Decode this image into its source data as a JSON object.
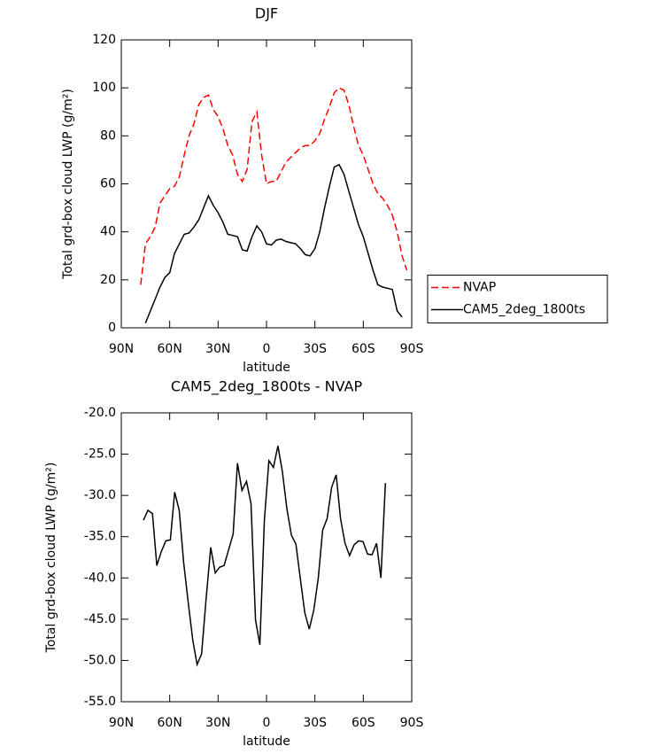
{
  "chart_data": [
    {
      "type": "line",
      "title": "DJF",
      "xlabel": "latitude",
      "ylabel": "Total grd-box cloud LWP (g/m²)",
      "xlim": [
        90,
        -90
      ],
      "xticks": [
        {
          "value": 90,
          "label": "90N"
        },
        {
          "value": 60,
          "label": "60N"
        },
        {
          "value": 30,
          "label": "30N"
        },
        0,
        {
          "value": -30,
          "label": "30S"
        },
        {
          "value": -60,
          "label": "60S"
        },
        {
          "value": -90,
          "label": "90S"
        }
      ],
      "ylim": [
        0,
        120
      ],
      "yticks": [
        0,
        20,
        40,
        60,
        80,
        100,
        120
      ],
      "legend": "right",
      "x": [
        78,
        75,
        72,
        69,
        66,
        63,
        60,
        57,
        54,
        51,
        48,
        45,
        42,
        39,
        36,
        33,
        30,
        27,
        24,
        21,
        18,
        15,
        12,
        9,
        6,
        3,
        0,
        -3,
        -6,
        -9,
        -12,
        -15,
        -18,
        -21,
        -24,
        -27,
        -30,
        -33,
        -36,
        -39,
        -42,
        -45,
        -48,
        -51,
        -54,
        -57,
        -60,
        -63,
        -66,
        -69,
        -72,
        -75,
        -78,
        -81,
        -84,
        -87
      ],
      "series": [
        {
          "name": "NVAP",
          "color": "#ff0000",
          "dashed": true,
          "values": [
            18,
            35,
            38,
            42,
            52,
            55,
            58,
            59,
            63,
            72,
            80,
            85,
            93,
            96,
            97,
            91,
            88,
            83,
            76,
            72,
            64,
            61,
            66,
            86,
            90,
            72,
            60,
            61,
            61,
            65,
            69,
            71,
            73,
            75,
            76,
            76,
            78,
            81,
            87,
            92,
            98,
            100,
            99,
            93,
            84,
            76,
            72,
            66,
            60,
            56,
            54,
            51,
            47,
            40,
            30,
            24
          ]
        },
        {
          "name": "CAM5_2deg_1800ts",
          "color": "#000000",
          "dashed": false,
          "values": [
            null,
            2,
            7,
            12,
            17,
            21,
            23,
            31,
            35,
            39,
            39.5,
            42,
            45,
            50,
            55,
            51,
            48,
            44,
            39,
            38.5,
            38,
            32.5,
            32,
            38,
            42.5,
            40,
            35,
            34.5,
            36.5,
            37,
            36,
            35.5,
            35,
            33,
            30.5,
            30,
            33,
            40,
            50,
            59,
            67,
            68,
            64,
            57,
            50,
            43,
            38,
            31,
            24,
            18,
            17,
            16.5,
            16,
            7,
            4.5,
            null
          ]
        }
      ]
    },
    {
      "type": "line",
      "title": "CAM5_2deg_1800ts - NVAP",
      "xlabel": "latitude",
      "ylabel": "Total grd-box cloud LWP (g/m²)",
      "xlim": [
        90,
        -90
      ],
      "xticks": [
        {
          "value": 90,
          "label": "90N"
        },
        {
          "value": 60,
          "label": "60N"
        },
        {
          "value": 30,
          "label": "30N"
        },
        0,
        {
          "value": -30,
          "label": "30S"
        },
        {
          "value": -60,
          "label": "60S"
        },
        {
          "value": -90,
          "label": "90S"
        }
      ],
      "ylim": [
        -55,
        -20
      ],
      "yticks": [
        {
          "value": -55,
          "label": "-55.0"
        },
        {
          "value": -50,
          "label": "-50.0"
        },
        {
          "value": -45,
          "label": "-45.0"
        },
        {
          "value": -40,
          "label": "-40.0"
        },
        {
          "value": -35,
          "label": "-35.0"
        },
        {
          "value": -30,
          "label": "-30.0"
        },
        {
          "value": -25,
          "label": "-25.0"
        },
        {
          "value": -20,
          "label": "-20.0"
        }
      ],
      "x": [
        76.3,
        73.5,
        70.7,
        68.0,
        65.2,
        62.4,
        59.6,
        56.9,
        54.1,
        51.3,
        48.5,
        45.7,
        43.0,
        40.2,
        37.4,
        34.6,
        31.8,
        29.1,
        26.3,
        23.5,
        20.7,
        18.0,
        15.2,
        12.4,
        9.6,
        6.8,
        4.1,
        1.3,
        -1.5,
        -4.3,
        -7.1,
        -9.8,
        -12.6,
        -15.4,
        -18.2,
        -20.9,
        -23.7,
        -26.5,
        -29.3,
        -32.1,
        -34.8,
        -37.6,
        -40.4,
        -43.2,
        -45.9,
        -48.7,
        -51.5,
        -54.3,
        -57.1,
        -59.8,
        -62.6,
        -65.4,
        -68.2,
        -70.9,
        -73.7
      ],
      "series": [
        {
          "color": "#000000",
          "dashed": false,
          "values": [
            -33,
            -31.8,
            -32.2,
            -38.5,
            -36.8,
            -35.5,
            -35.4,
            -29.6,
            -31.8,
            -38.2,
            -43,
            -47.5,
            -50.5,
            -49.2,
            -42.5,
            -36.3,
            -39.4,
            -38.7,
            -38.5,
            -36.6,
            -34.7,
            -26.1,
            -29.4,
            -28.3,
            -31,
            -45.1,
            -48.1,
            -33,
            -25.8,
            -26.6,
            -24,
            -27.1,
            -31.6,
            -34.8,
            -35.9,
            -40,
            -44.2,
            -46.2,
            -43.9,
            -40,
            -34.2,
            -32.8,
            -29,
            -27.5,
            -32.8,
            -35.8,
            -37.3,
            -36,
            -35.5,
            -35.6,
            -37.1,
            -37.2,
            -35.8,
            -40,
            -28.5
          ]
        }
      ]
    }
  ]
}
